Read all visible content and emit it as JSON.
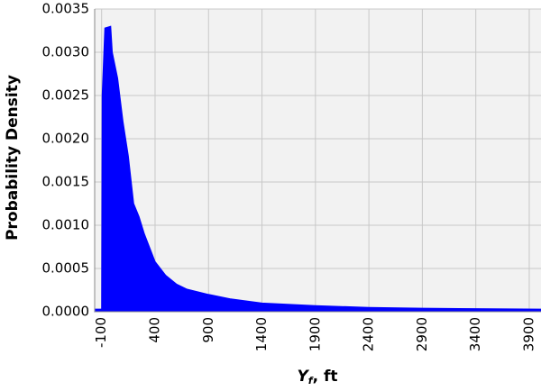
{
  "chart_data": {
    "type": "area",
    "y_label": "Probability Density",
    "x_label": {
      "symbol": "Y",
      "subscript": "f",
      "unit": ", ft"
    },
    "color": "#0000ff",
    "x": [
      -165,
      -100,
      -95,
      -70,
      -15,
      0,
      50,
      100,
      150,
      200,
      250,
      300,
      400,
      500,
      600,
      700,
      900,
      1100,
      1400,
      1900,
      2400,
      2900,
      3400,
      4010
    ],
    "values": [
      3e-05,
      3e-05,
      0.0025,
      0.00328,
      0.0033,
      0.003,
      0.0027,
      0.0022,
      0.0018,
      0.00125,
      0.0011,
      0.0009,
      0.00058,
      0.00042,
      0.00032,
      0.00026,
      0.0002,
      0.00015,
      0.0001,
      7e-05,
      5e-05,
      4e-05,
      3.5e-05,
      3e-05
    ],
    "xlim": [
      -165,
      4010
    ],
    "ylim": [
      0,
      0.0035
    ],
    "xticks": [
      -100,
      400,
      900,
      1400,
      1900,
      2400,
      2900,
      3400,
      3900
    ],
    "yticks": [
      {
        "value": 0,
        "label": "0.0000"
      },
      0.0005,
      {
        "value": 0.001,
        "label": "0.0010"
      },
      0.0015,
      {
        "value": 0.002,
        "label": "0.0020"
      },
      0.0025,
      {
        "value": 0.003,
        "label": "0.0030"
      },
      0.0035
    ],
    "grid": true
  }
}
